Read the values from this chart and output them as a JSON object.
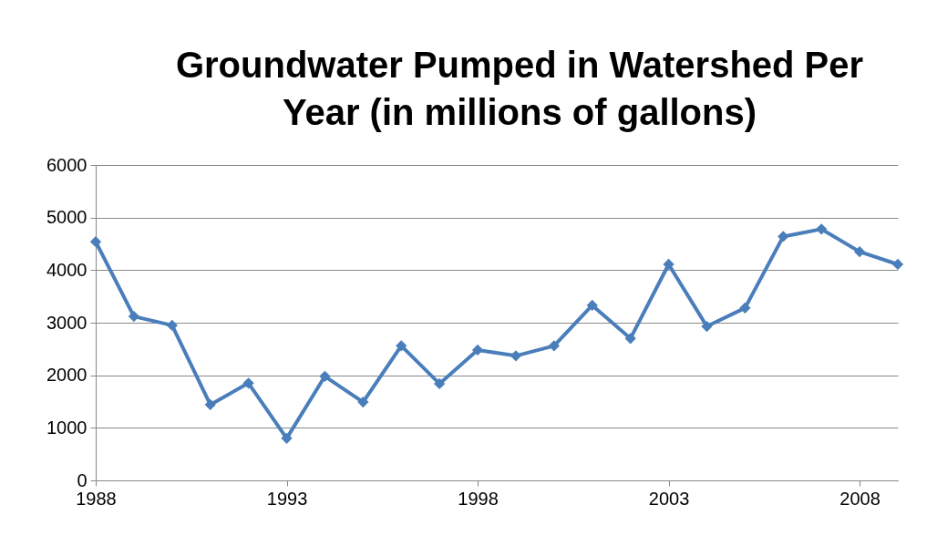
{
  "chart_data": {
    "type": "line",
    "title": "Groundwater Pumped in Watershed Per Year (in millions of gallons)",
    "x": [
      1988,
      1989,
      1990,
      1991,
      1992,
      1993,
      1994,
      1995,
      1996,
      1997,
      1998,
      1999,
      2000,
      2001,
      2002,
      2003,
      2004,
      2005,
      2006,
      2007,
      2008,
      2009
    ],
    "series": [
      {
        "color": "#4a7ebb",
        "values": [
          4540,
          3120,
          2950,
          1440,
          1850,
          800,
          1980,
          1490,
          2560,
          1840,
          2480,
          2370,
          2560,
          3330,
          2700,
          4110,
          2930,
          3280,
          4640,
          4780,
          4350,
          4110
        ]
      }
    ],
    "xlim": [
      1988,
      2009
    ],
    "xticks": [
      1988,
      1993,
      1998,
      2003,
      2008
    ],
    "ylim": [
      0,
      6000
    ],
    "yticks": [
      0,
      1000,
      2000,
      3000,
      4000,
      5000,
      6000
    ],
    "grid": "y",
    "marker": "diamond",
    "line_style": "solid"
  }
}
